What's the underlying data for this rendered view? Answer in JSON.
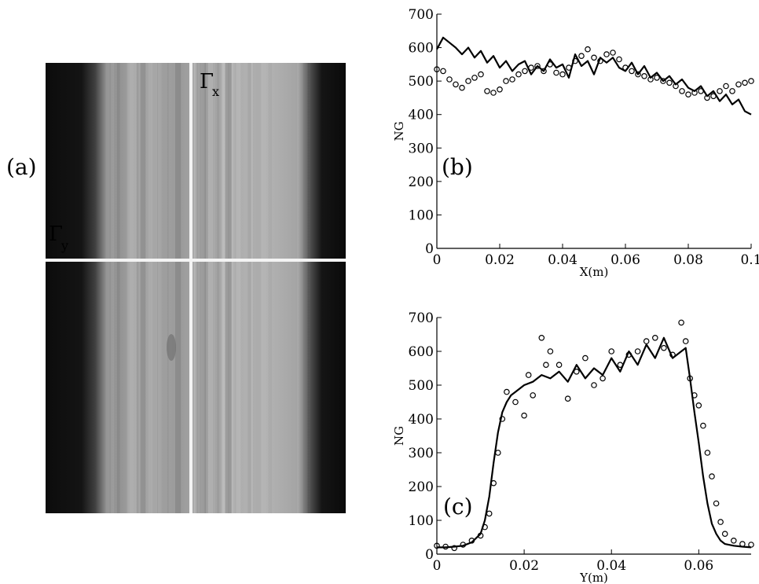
{
  "panel_a": {
    "label": "(a)",
    "gamma_x": "Γ",
    "gamma_x_sub": "x",
    "gamma_y": "Γ",
    "gamma_y_sub": "y"
  },
  "chart_data": [
    {
      "panel": "(b)",
      "type": "line",
      "xlabel": "X(m)",
      "ylabel": "NG",
      "xlim": [
        0,
        0.1
      ],
      "ylim": [
        0,
        700
      ],
      "xticks": [
        0,
        0.02,
        0.04,
        0.06,
        0.08,
        0.1
      ],
      "xtick_labels": [
        "0",
        "0.02",
        "0.04",
        "0.06",
        "0.08",
        "0.1"
      ],
      "yticks": [
        0,
        100,
        200,
        300,
        400,
        500,
        600,
        700
      ],
      "ytick_labels": [
        "0",
        "100",
        "200",
        "300",
        "400",
        "500",
        "600",
        "700"
      ],
      "series": [
        {
          "style": "line",
          "x": [
            0,
            0.002,
            0.004,
            0.006,
            0.008,
            0.01,
            0.012,
            0.014,
            0.016,
            0.018,
            0.02,
            0.022,
            0.024,
            0.026,
            0.028,
            0.03,
            0.032,
            0.034,
            0.036,
            0.038,
            0.04,
            0.042,
            0.044,
            0.046,
            0.048,
            0.05,
            0.052,
            0.054,
            0.056,
            0.058,
            0.06,
            0.062,
            0.064,
            0.066,
            0.068,
            0.07,
            0.072,
            0.074,
            0.076,
            0.078,
            0.08,
            0.082,
            0.084,
            0.086,
            0.088,
            0.09,
            0.092,
            0.094,
            0.096,
            0.098,
            0.1
          ],
          "y": [
            595,
            630,
            615,
            600,
            580,
            600,
            570,
            590,
            555,
            575,
            540,
            560,
            530,
            550,
            560,
            520,
            545,
            530,
            565,
            540,
            550,
            510,
            580,
            545,
            560,
            520,
            570,
            555,
            570,
            540,
            530,
            555,
            520,
            545,
            510,
            525,
            500,
            515,
            490,
            505,
            480,
            470,
            485,
            455,
            470,
            440,
            460,
            430,
            445,
            410,
            400
          ]
        },
        {
          "style": "circles",
          "x": [
            0,
            0.002,
            0.004,
            0.006,
            0.008,
            0.01,
            0.012,
            0.014,
            0.016,
            0.018,
            0.02,
            0.022,
            0.024,
            0.026,
            0.028,
            0.03,
            0.032,
            0.034,
            0.036,
            0.038,
            0.04,
            0.042,
            0.044,
            0.046,
            0.048,
            0.05,
            0.052,
            0.054,
            0.056,
            0.058,
            0.06,
            0.062,
            0.064,
            0.066,
            0.068,
            0.07,
            0.072,
            0.074,
            0.076,
            0.078,
            0.08,
            0.082,
            0.084,
            0.086,
            0.088,
            0.09,
            0.092,
            0.094,
            0.096,
            0.098,
            0.1
          ],
          "y": [
            535,
            530,
            505,
            490,
            480,
            500,
            510,
            520,
            470,
            465,
            475,
            500,
            505,
            520,
            530,
            540,
            545,
            530,
            550,
            525,
            520,
            540,
            560,
            575,
            595,
            570,
            560,
            580,
            585,
            565,
            540,
            530,
            520,
            515,
            505,
            510,
            500,
            495,
            485,
            470,
            460,
            465,
            470,
            450,
            455,
            470,
            485,
            470,
            490,
            495,
            500
          ]
        }
      ]
    },
    {
      "panel": "(c)",
      "type": "line",
      "xlabel": "Y(m)",
      "ylabel": "NG",
      "xlim": [
        0,
        0.072
      ],
      "ylim": [
        0,
        700
      ],
      "xticks": [
        0,
        0.02,
        0.04,
        0.06
      ],
      "xtick_labels": [
        "0",
        "0.02",
        "0.04",
        "0.06"
      ],
      "yticks": [
        0,
        100,
        200,
        300,
        400,
        500,
        600,
        700
      ],
      "ytick_labels": [
        "0",
        "100",
        "200",
        "300",
        "400",
        "500",
        "600",
        "700"
      ],
      "series": [
        {
          "style": "line",
          "x": [
            0,
            0.002,
            0.004,
            0.006,
            0.008,
            0.01,
            0.011,
            0.012,
            0.013,
            0.014,
            0.015,
            0.016,
            0.017,
            0.018,
            0.02,
            0.022,
            0.024,
            0.026,
            0.028,
            0.03,
            0.032,
            0.034,
            0.036,
            0.038,
            0.04,
            0.042,
            0.044,
            0.046,
            0.048,
            0.05,
            0.052,
            0.054,
            0.056,
            0.057,
            0.058,
            0.059,
            0.06,
            0.061,
            0.062,
            0.063,
            0.064,
            0.065,
            0.066,
            0.068,
            0.07,
            0.072
          ],
          "y": [
            20,
            20,
            22,
            25,
            35,
            60,
            100,
            170,
            270,
            360,
            420,
            450,
            470,
            480,
            500,
            510,
            530,
            520,
            540,
            510,
            560,
            520,
            550,
            530,
            580,
            540,
            600,
            560,
            620,
            580,
            640,
            580,
            600,
            610,
            520,
            420,
            330,
            230,
            150,
            90,
            60,
            40,
            30,
            25,
            22,
            20
          ]
        },
        {
          "style": "circles",
          "x": [
            0,
            0.002,
            0.004,
            0.006,
            0.008,
            0.01,
            0.011,
            0.012,
            0.013,
            0.014,
            0.015,
            0.016,
            0.018,
            0.02,
            0.021,
            0.022,
            0.024,
            0.025,
            0.026,
            0.028,
            0.03,
            0.032,
            0.034,
            0.036,
            0.038,
            0.04,
            0.042,
            0.044,
            0.046,
            0.048,
            0.05,
            0.052,
            0.054,
            0.056,
            0.057,
            0.058,
            0.059,
            0.06,
            0.061,
            0.062,
            0.063,
            0.064,
            0.065,
            0.066,
            0.068,
            0.07,
            0.072
          ],
          "y": [
            25,
            22,
            18,
            28,
            40,
            55,
            80,
            120,
            210,
            300,
            400,
            480,
            450,
            410,
            530,
            470,
            640,
            560,
            600,
            560,
            460,
            540,
            580,
            500,
            520,
            600,
            560,
            590,
            600,
            630,
            640,
            610,
            590,
            685,
            630,
            520,
            470,
            440,
            380,
            300,
            230,
            150,
            95,
            60,
            40,
            30,
            28
          ]
        }
      ]
    }
  ]
}
